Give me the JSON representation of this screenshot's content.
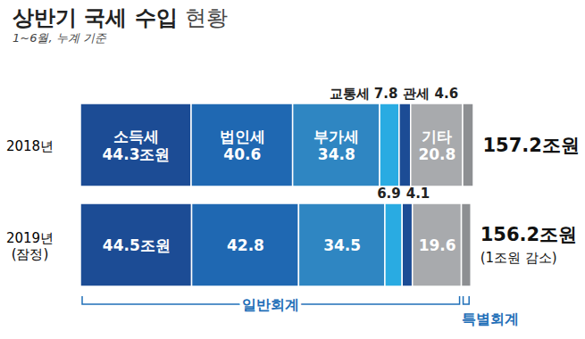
{
  "chart_data": {
    "type": "bar",
    "orientation": "horizontal",
    "stacked": true,
    "data_labels": true,
    "tick_labels": "y",
    "grid": false,
    "title": "상반기 국세 수입 현황",
    "subtitle": "1~6월, 누계 기준",
    "categories": [
      "2018년",
      "2019년\n(잠정)"
    ],
    "series": [
      {
        "name": "소득세",
        "color": "#1c4c95",
        "values": [
          44.3,
          44.5
        ],
        "value_labels": [
          "44.3조원",
          "44.5조원"
        ]
      },
      {
        "name": "법인세",
        "color": "#1f68b2",
        "values": [
          40.6,
          42.8
        ],
        "value_labels": [
          "40.6",
          "42.8"
        ]
      },
      {
        "name": "부가세",
        "color": "#2f86c2",
        "values": [
          34.8,
          34.5
        ],
        "value_labels": [
          "34.8",
          "34.5"
        ]
      },
      {
        "name": "교통세",
        "color": "#29abe2",
        "values": [
          7.8,
          6.9
        ],
        "value_labels": [
          "7.8",
          "6.9"
        ]
      },
      {
        "name": "관세",
        "color": "#1c4c95",
        "values": [
          4.6,
          4.1
        ],
        "value_labels": [
          "4.6",
          "4.1"
        ]
      },
      {
        "name": "기타",
        "color": "#a8aaad",
        "values": [
          20.8,
          19.6
        ],
        "value_labels": [
          "20.8",
          "19.6"
        ]
      },
      {
        "name": "특별회계",
        "color": "#8d8f92",
        "values": [
          4.3,
          3.8
        ],
        "value_labels": [
          null,
          null
        ]
      }
    ],
    "totals": [
      157.2,
      156.2
    ],
    "total_labels": [
      "157.2조원",
      "156.2조원"
    ],
    "total_notes": [
      null,
      "(1조원 감소)"
    ],
    "groups": [
      {
        "name": "일반회계",
        "series": [
          "소득세",
          "법인세",
          "부가세",
          "교통세",
          "관세",
          "기타"
        ]
      },
      {
        "name": "특별회계",
        "series": [
          "특별회계"
        ]
      }
    ],
    "xlim": [
      0,
      157.2
    ]
  }
}
